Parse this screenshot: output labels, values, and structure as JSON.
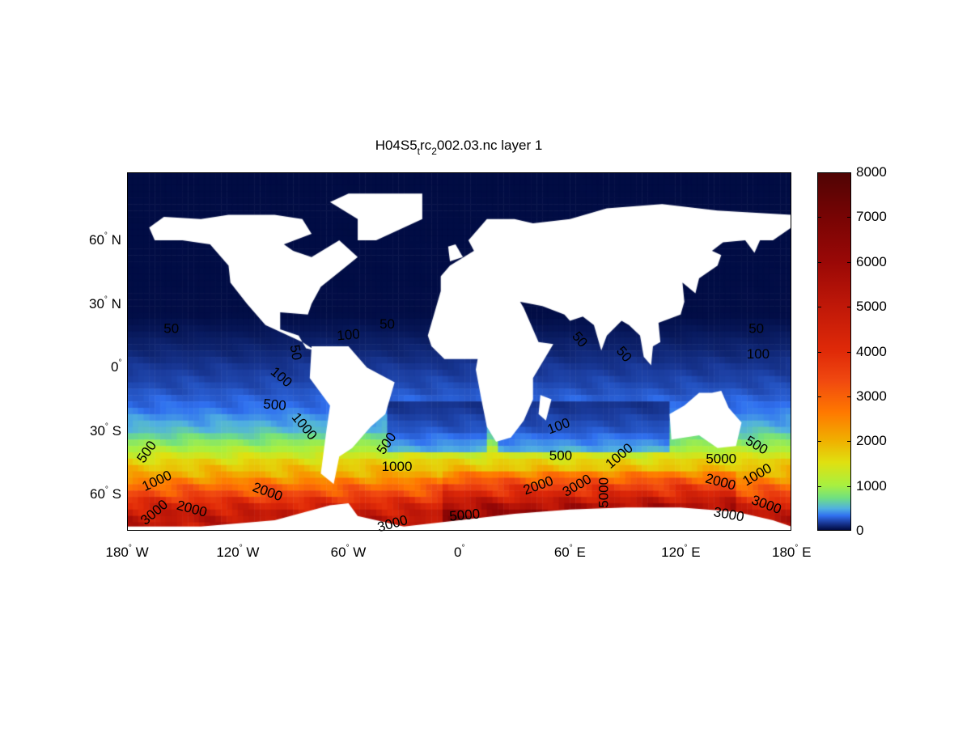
{
  "title": {
    "parts": [
      "H04S5",
      "t",
      "rc",
      "2",
      "002.03.nc layer 1"
    ]
  },
  "chart_data": {
    "type": "heatmap",
    "title": "H04S5_trc_2002.03.nc layer 1",
    "projection": "equirectangular",
    "lon_range": [
      -180,
      180
    ],
    "lat_range": [
      -77,
      92
    ],
    "x_ticks": [
      {
        "value": -180,
        "num": "180",
        "deg": "°",
        "hemi": " W"
      },
      {
        "value": -120,
        "num": "120",
        "deg": "°",
        "hemi": " W"
      },
      {
        "value": -60,
        "num": "60",
        "deg": "°",
        "hemi": " W"
      },
      {
        "value": 0,
        "num": "0",
        "deg": "°",
        "hemi": ""
      },
      {
        "value": 60,
        "num": "60",
        "deg": "°",
        "hemi": " E"
      },
      {
        "value": 120,
        "num": "120",
        "deg": "°",
        "hemi": " E"
      },
      {
        "value": 180,
        "num": "180",
        "deg": "°",
        "hemi": " E"
      }
    ],
    "y_ticks": [
      {
        "value": 60,
        "num": "60",
        "deg": "°",
        "hemi": " N"
      },
      {
        "value": 30,
        "num": "30",
        "deg": "°",
        "hemi": " N"
      },
      {
        "value": 0,
        "num": "0",
        "deg": "°",
        "hemi": ""
      },
      {
        "value": -30,
        "num": "30",
        "deg": "°",
        "hemi": " S"
      },
      {
        "value": -60,
        "num": "60",
        "deg": "°",
        "hemi": " S"
      }
    ],
    "colorbar": {
      "range": [
        0,
        8000
      ],
      "ticks": [
        "0",
        "1000",
        "2000",
        "3000",
        "4000",
        "5000",
        "6000",
        "7000",
        "8000"
      ],
      "stops": [
        [
          0,
          "#000a40"
        ],
        [
          0.02,
          "#1a3a9a"
        ],
        [
          0.04,
          "#3070f0"
        ],
        [
          0.06,
          "#50b0e0"
        ],
        [
          0.09,
          "#70e080"
        ],
        [
          0.125,
          "#a8f040"
        ],
        [
          0.19,
          "#e0e010"
        ],
        [
          0.25,
          "#f0b000"
        ],
        [
          0.33,
          "#ff7800"
        ],
        [
          0.42,
          "#f04810"
        ],
        [
          0.5,
          "#e02a08"
        ],
        [
          0.625,
          "#c01808"
        ],
        [
          0.75,
          "#9a0806"
        ],
        [
          0.875,
          "#780404"
        ],
        [
          1.0,
          "#500404"
        ]
      ]
    },
    "zonal_profile": [
      [
        92,
        5
      ],
      [
        25,
        10
      ],
      [
        18,
        40
      ],
      [
        8,
        90
      ],
      [
        0,
        150
      ],
      [
        -10,
        220
      ],
      [
        -20,
        330
      ],
      [
        -30,
        550
      ],
      [
        -38,
        1000
      ],
      [
        -44,
        1600
      ],
      [
        -50,
        2000
      ],
      [
        -55,
        2700
      ],
      [
        -60,
        3400
      ],
      [
        -65,
        4300
      ],
      [
        -70,
        5000
      ],
      [
        -77,
        5000
      ]
    ],
    "land_color": "#ffffff",
    "contour_color": "#8c8c8c",
    "contour_labels": [
      {
        "text": "50",
        "lon": -156,
        "lat": 18,
        "rot": 0
      },
      {
        "text": "100",
        "lon": -60,
        "lat": 15,
        "rot": -5
      },
      {
        "text": "50",
        "lon": -39,
        "lat": 20,
        "rot": 0
      },
      {
        "text": "50",
        "lon": -89,
        "lat": 7,
        "rot": 80
      },
      {
        "text": "100",
        "lon": -98,
        "lat": -2,
        "rot": 40
      },
      {
        "text": "50",
        "lon": 65,
        "lat": 13,
        "rot": 50
      },
      {
        "text": "50",
        "lon": 89,
        "lat": 6,
        "rot": 50
      },
      {
        "text": "50",
        "lon": 161,
        "lat": 18,
        "rot": 0
      },
      {
        "text": "100",
        "lon": 162,
        "lat": 6,
        "rot": 0
      },
      {
        "text": "500",
        "lon": -100,
        "lat": -18,
        "rot": 5
      },
      {
        "text": "1000",
        "lon": -86,
        "lat": -28,
        "rot": 50
      },
      {
        "text": "500",
        "lon": -169,
        "lat": -40,
        "rot": -55
      },
      {
        "text": "1000",
        "lon": -165,
        "lat": -51,
        "rot": -25
      },
      {
        "text": "3000",
        "lon": -165,
        "lat": -61,
        "rot": -40
      },
      {
        "text": "2000",
        "lon": -152,
        "lat": -67,
        "rot": 15
      },
      {
        "text": "2000",
        "lon": -104,
        "lat": -59,
        "rot": 20
      },
      {
        "text": "500",
        "lon": -39,
        "lat": -36,
        "rot": -55
      },
      {
        "text": "1000",
        "lon": -35,
        "lat": -46,
        "rot": 0
      },
      {
        "text": "3000",
        "lon": -36,
        "lat": -74,
        "rot": -15
      },
      {
        "text": "5000",
        "lon": 3,
        "lat": -70,
        "rot": -5
      },
      {
        "text": "100",
        "lon": 54,
        "lat": -28,
        "rot": -20
      },
      {
        "text": "500",
        "lon": 55,
        "lat": -42,
        "rot": 0
      },
      {
        "text": "1000",
        "lon": 87,
        "lat": -42,
        "rot": -40
      },
      {
        "text": "2000",
        "lon": 43,
        "lat": -56,
        "rot": -20
      },
      {
        "text": "3000",
        "lon": 57,
        "lat": -56,
        "rot": -30
      },
      {
        "text": "5000",
        "lon": 77,
        "lat": -59,
        "rot": -90
      },
      {
        "text": "500",
        "lon": 161,
        "lat": -37,
        "rot": 30
      },
      {
        "text": "1000",
        "lon": 157,
        "lat": -41,
        "rot": -30
      },
      {
        "text": "2000",
        "lon": 148,
        "lat": -52,
        "rot": 15
      },
      {
        "text": "3000",
        "lon": 163,
        "lat": -58,
        "rot": 20
      },
      {
        "text": "3000",
        "lon": 159,
        "lat": -65,
        "rot": 10
      },
      {
        "text": "5000",
        "lon": 168,
        "lat": -66,
        "rot": 0
      }
    ]
  }
}
